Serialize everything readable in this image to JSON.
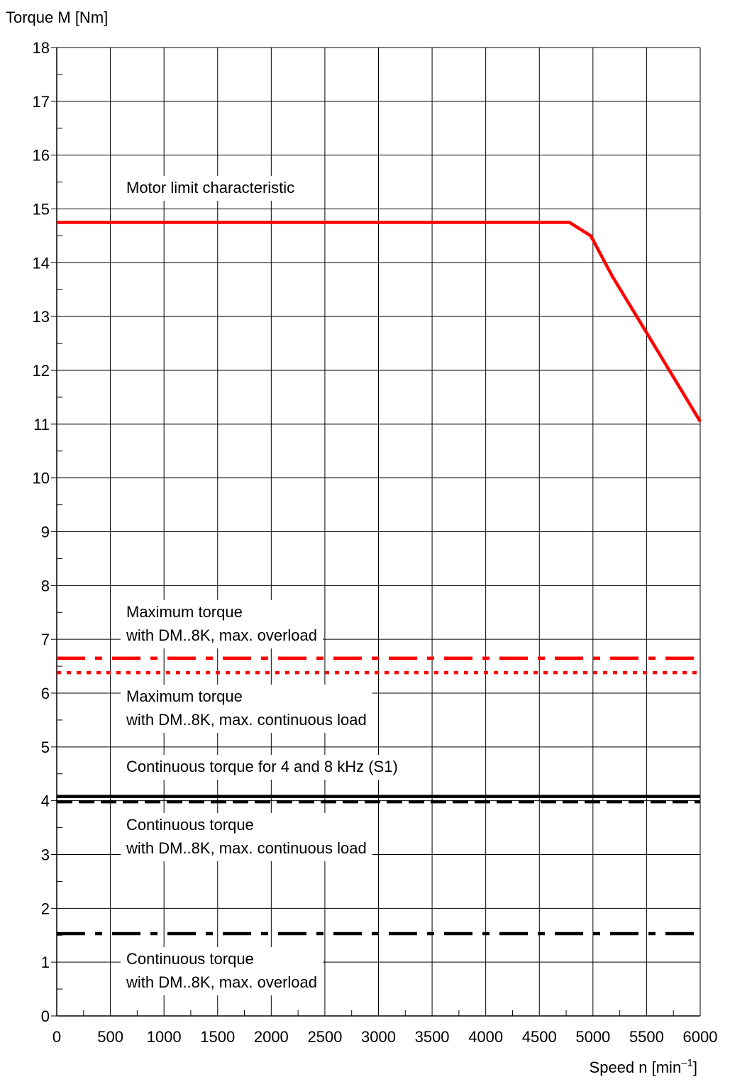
{
  "chart_data": {
    "type": "line",
    "ylabel": "Torque M [Nm]",
    "xlabel_main": "Speed n [min",
    "xlabel_sup": "–1",
    "xlabel_end": "]",
    "xlim": [
      0,
      6000
    ],
    "ylim": [
      0,
      18
    ],
    "grid": true,
    "x_ticks": [
      0,
      500,
      1000,
      1500,
      2000,
      2500,
      3000,
      3500,
      4000,
      4500,
      5000,
      5500,
      6000
    ],
    "y_ticks": [
      0,
      1,
      2,
      3,
      4,
      5,
      6,
      7,
      8,
      9,
      10,
      11,
      12,
      13,
      14,
      15,
      16,
      17,
      18
    ],
    "series": [
      {
        "name": "Motor limit characteristic",
        "color": "#ff0000",
        "style": "solid",
        "x": [
          0,
          4780,
          4980,
          5180,
          5500,
          6000
        ],
        "y": [
          14.75,
          14.75,
          14.5,
          13.75,
          12.7,
          11.05
        ]
      },
      {
        "name": "Maximum torque with DM..8K, max. overload",
        "color": "#ff0000",
        "style": "dash-dot",
        "x": [
          0,
          6000
        ],
        "y": [
          6.65,
          6.65
        ]
      },
      {
        "name": "Maximum torque with DM..8K, max. continuous load",
        "color": "#ff0000",
        "style": "dotted",
        "x": [
          0,
          6000
        ],
        "y": [
          6.38,
          6.38
        ]
      },
      {
        "name": "Continuous torque for 4 and 8 kHz (S1)",
        "color": "#000000",
        "style": "solid",
        "x": [
          0,
          6000
        ],
        "y": [
          4.08,
          4.08
        ]
      },
      {
        "name": "Continuous torque with DM..8K, max. continuous load",
        "color": "#000000",
        "style": "dashed",
        "x": [
          0,
          6000
        ],
        "y": [
          3.98,
          3.98
        ]
      },
      {
        "name": "Continuous torque with DM..8K, max. overload",
        "color": "#000000",
        "style": "dash-dot",
        "x": [
          0,
          6000
        ],
        "y": [
          1.53,
          1.53
        ]
      }
    ],
    "annotations": [
      {
        "id": "motor-limit",
        "lines": [
          "Motor limit characteristic"
        ]
      },
      {
        "id": "max-overload",
        "lines": [
          "Maximum torque",
          "with DM..8K, max. overload"
        ]
      },
      {
        "id": "max-continuous",
        "lines": [
          "Maximum torque",
          "with DM..8K, max. continuous load"
        ]
      },
      {
        "id": "cont-s1",
        "lines": [
          "Continuous torque for 4 and 8 kHz (S1)"
        ]
      },
      {
        "id": "cont-continuous",
        "lines": [
          "Continuous torque",
          "with DM..8K, max. continuous load"
        ]
      },
      {
        "id": "cont-overload",
        "lines": [
          "Continuous torque",
          "with DM..8K, max. overload"
        ]
      }
    ]
  }
}
